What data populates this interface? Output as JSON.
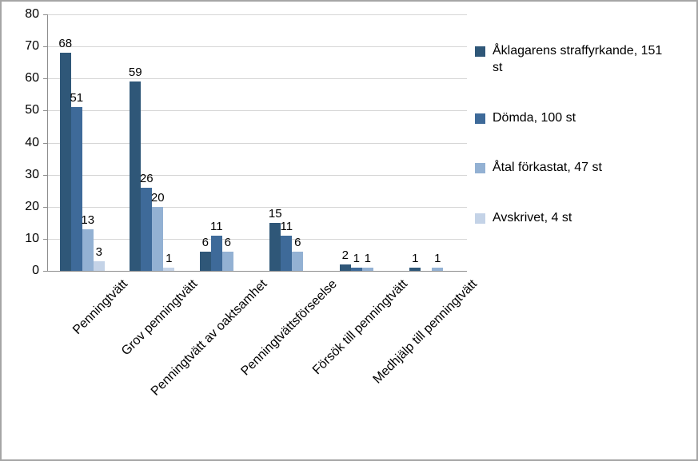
{
  "frame": {
    "border_color": "#a6a6a6",
    "background": "#ffffff"
  },
  "chart_data": {
    "type": "bar",
    "title": "",
    "xlabel": "",
    "ylabel": "",
    "categories": [
      "Penningtvätt",
      "Grov penningtvätt",
      "Penningtvätt av oaktsamhet",
      "Penningtvättsförseelse",
      "Försök till penningtvätt",
      "Medhjälp till penningtvätt"
    ],
    "series": [
      {
        "name": "Åklagarens straffyrkande, 151 st",
        "color": "#2f5778",
        "values": [
          68,
          59,
          6,
          15,
          2,
          1
        ]
      },
      {
        "name": "Dömda, 100 st",
        "color": "#3e6a99",
        "values": [
          51,
          26,
          11,
          11,
          1,
          0
        ]
      },
      {
        "name": "Åtal förkastat, 47 st",
        "color": "#93b1d3",
        "values": [
          13,
          20,
          6,
          6,
          1,
          1
        ]
      },
      {
        "name": "Avskrivet, 4 st",
        "color": "#c4d3e7",
        "values": [
          3,
          1,
          0,
          0,
          0,
          0
        ]
      }
    ],
    "ylim": [
      0,
      80
    ],
    "yticks": [
      0,
      10,
      20,
      30,
      40,
      50,
      60,
      70,
      80
    ],
    "grid": true,
    "data_labels": true,
    "legend_position": "right",
    "gridline_color": "#d6d6d6",
    "axis_color": "#8e8e8e",
    "text_color": "#000000"
  }
}
